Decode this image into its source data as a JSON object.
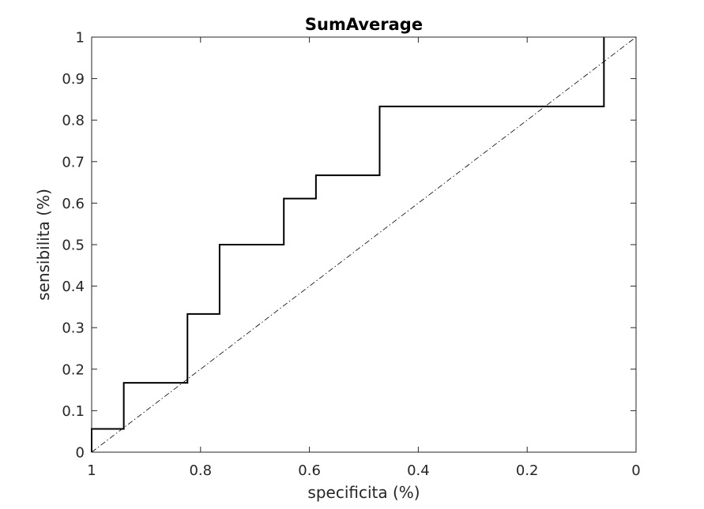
{
  "chart_data": {
    "type": "line",
    "title": "SumAverage",
    "xlabel": "specificita (%)",
    "ylabel": "sensibilita (%)",
    "xlim": [
      1,
      0
    ],
    "ylim": [
      0,
      1
    ],
    "x_reversed": true,
    "grid": false,
    "box": true,
    "xticks": [
      1,
      0.8,
      0.6,
      0.4,
      0.2,
      0
    ],
    "xtick_labels": [
      "1",
      "0.8",
      "0.6",
      "0.4",
      "0.2",
      "0"
    ],
    "yticks": [
      0,
      0.1,
      0.2,
      0.3,
      0.4,
      0.5,
      0.6,
      0.7,
      0.8,
      0.9,
      1
    ],
    "ytick_labels": [
      "0",
      "0.1",
      "0.2",
      "0.3",
      "0.4",
      "0.5",
      "0.6",
      "0.7",
      "0.8",
      "0.9",
      "1"
    ],
    "series": [
      {
        "style": "solid",
        "color": "#000000",
        "x": [
          1,
          1,
          0.941,
          0.941,
          0.824,
          0.824,
          0.765,
          0.765,
          0.647,
          0.647,
          0.588,
          0.588,
          0.471,
          0.471,
          0.059,
          0.059
        ],
        "y": [
          0,
          0.056,
          0.056,
          0.167,
          0.167,
          0.333,
          0.333,
          0.5,
          0.5,
          0.611,
          0.611,
          0.667,
          0.667,
          0.833,
          0.833,
          1
        ]
      },
      {
        "style": "dash-dot",
        "color": "#000000",
        "x": [
          1,
          0
        ],
        "y": [
          0,
          1
        ]
      }
    ]
  }
}
